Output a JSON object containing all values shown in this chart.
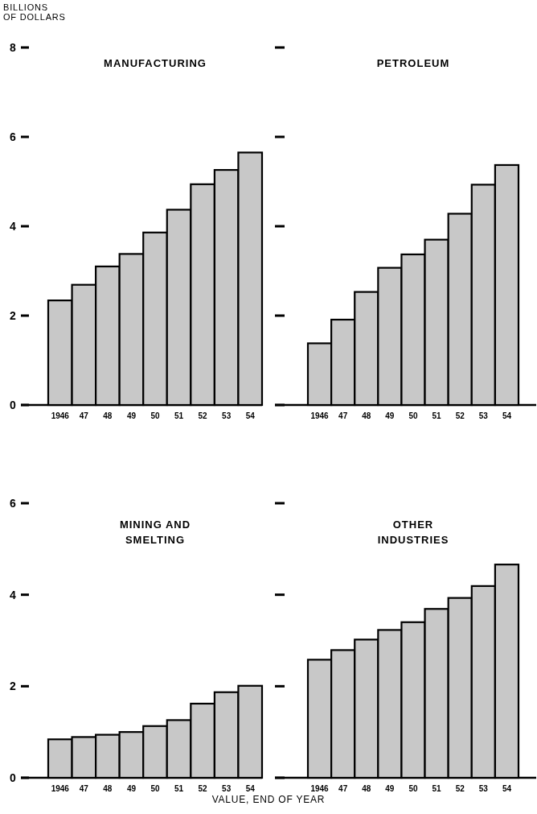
{
  "chart_data": [
    {
      "type": "bar",
      "title": "MANUFACTURING",
      "ylabel": "BILLIONS OF DOLLARS",
      "categories": [
        "1946",
        "47",
        "48",
        "49",
        "50",
        "51",
        "52",
        "53",
        "54"
      ],
      "values": [
        2.34,
        2.69,
        3.1,
        3.38,
        3.86,
        4.37,
        4.94,
        5.26,
        5.65
      ],
      "color": "#c8c8c8",
      "ylim": [
        0,
        8
      ],
      "yticks": [
        0,
        2,
        4,
        6,
        8
      ],
      "grid": false
    },
    {
      "type": "bar",
      "title": "PETROLEUM",
      "categories": [
        "1946",
        "47",
        "48",
        "49",
        "50",
        "51",
        "52",
        "53",
        "54"
      ],
      "values": [
        1.38,
        1.91,
        2.53,
        3.07,
        3.37,
        3.7,
        4.28,
        4.93,
        5.37
      ],
      "color": "#c8c8c8",
      "ylim": [
        0,
        8
      ],
      "yticks": [
        0,
        2,
        4,
        6,
        8
      ],
      "grid": false,
      "tick_labels": "x"
    },
    {
      "type": "bar",
      "title": "MINING AND SMELTING",
      "xlabel": "VALUE, END OF YEAR",
      "categories": [
        "1946",
        "47",
        "48",
        "49",
        "50",
        "51",
        "52",
        "53",
        "54"
      ],
      "values": [
        0.84,
        0.89,
        0.94,
        1.0,
        1.13,
        1.26,
        1.62,
        1.87,
        2.01
      ],
      "color": "#c8c8c8",
      "ylim": [
        0,
        6
      ],
      "yticks": [
        0,
        2,
        4,
        6
      ],
      "grid": false
    },
    {
      "type": "bar",
      "title": "OTHER INDUSTRIES",
      "categories": [
        "1946",
        "47",
        "48",
        "49",
        "50",
        "51",
        "52",
        "53",
        "54"
      ],
      "values": [
        2.58,
        2.79,
        3.02,
        3.23,
        3.4,
        3.69,
        3.93,
        4.19,
        4.66
      ],
      "color": "#c8c8c8",
      "ylim": [
        0,
        6
      ],
      "yticks": [
        0,
        2,
        4,
        6
      ],
      "grid": false,
      "tick_labels": "x"
    }
  ]
}
